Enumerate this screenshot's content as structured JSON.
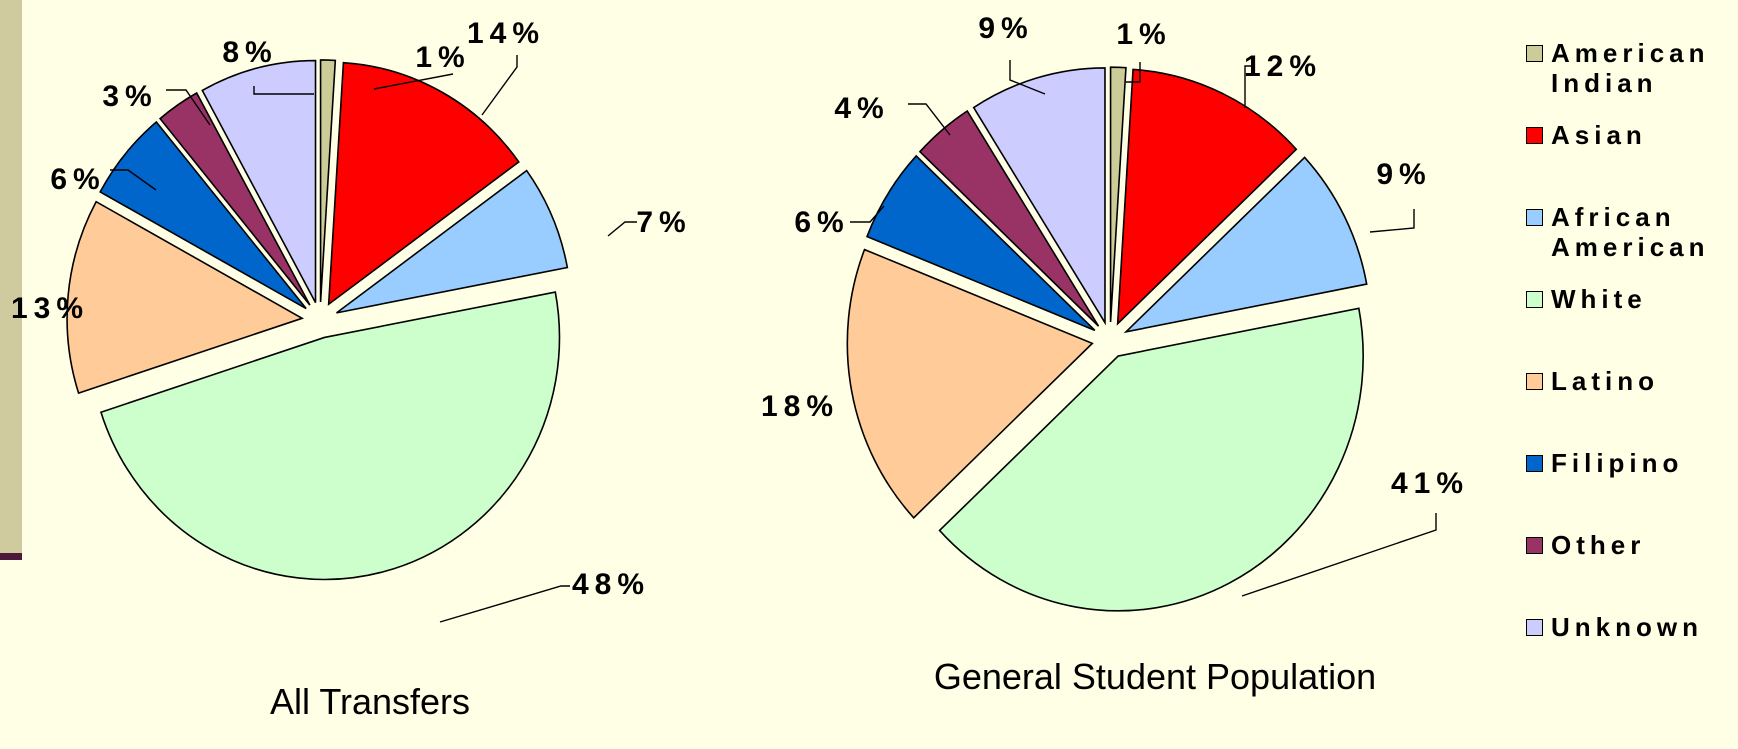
{
  "chart_data": [
    {
      "type": "pie",
      "title": "All Transfers",
      "categories": [
        "American Indian",
        "Asian",
        "African American",
        "White",
        "Latino",
        "Filipino",
        "Other",
        "Unknown"
      ],
      "values": [
        1,
        14,
        7,
        48,
        13,
        6,
        3,
        8
      ],
      "data_labels": [
        "1%",
        "14%",
        "7%",
        "48%",
        "13%",
        "6%",
        "3%",
        "8%"
      ],
      "exploded": true,
      "legend_position": "right"
    },
    {
      "type": "pie",
      "title": "General Student Population",
      "categories": [
        "American Indian",
        "Asian",
        "African American",
        "White",
        "Latino",
        "Filipino",
        "Other",
        "Unknown"
      ],
      "values": [
        1,
        12,
        9,
        41,
        18,
        6,
        4,
        9
      ],
      "data_labels": [
        "1%",
        "12%",
        "9%",
        "41%",
        "18%",
        "6%",
        "4%",
        "9%"
      ],
      "exploded": true,
      "legend_position": "right"
    }
  ],
  "legend": [
    {
      "label": "American Indian",
      "color": "#CCCC99"
    },
    {
      "label": "Asian",
      "color": "#FF0000"
    },
    {
      "label": "African American",
      "color": "#99CCFF"
    },
    {
      "label": "White",
      "color": "#CCFFCC"
    },
    {
      "label": "Latino",
      "color": "#FFCC99"
    },
    {
      "label": "Filipino",
      "color": "#0066CC"
    },
    {
      "label": "Other",
      "color": "#993366"
    },
    {
      "label": "Unknown",
      "color": "#CCCCFF"
    }
  ]
}
